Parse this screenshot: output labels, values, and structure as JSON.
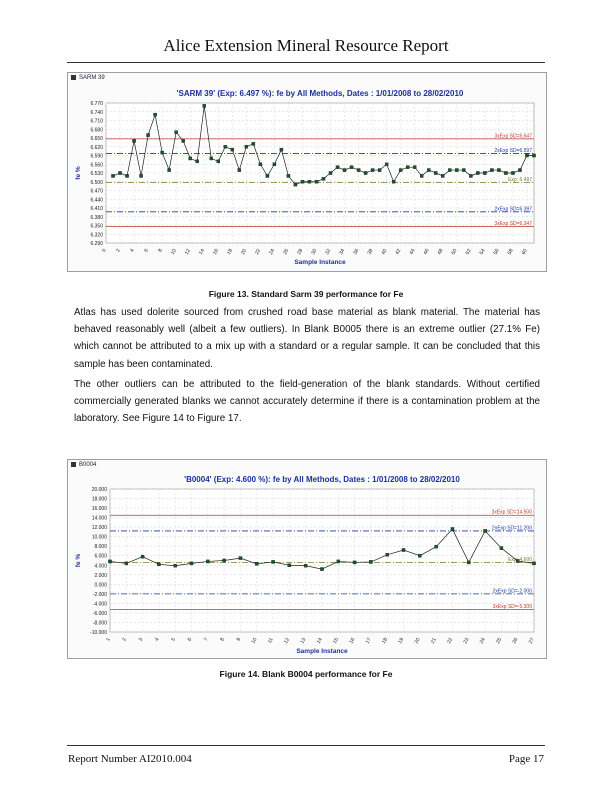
{
  "header": {
    "title": "Alice Extension Mineral Resource Report"
  },
  "figure13": {
    "caption": "Figure 13. Standard Sarm 39 performance for Fe",
    "chart_data": {
      "type": "line",
      "legend_label": "SARM 39",
      "title": "'SARM 39' (Exp: 6.497 %): fe by All Methods, Dates : 1/01/2008 to 28/02/2010",
      "xlabel": "Sample Instance",
      "ylabel": "fe %",
      "ylim": [
        6.29,
        6.77
      ],
      "yticks": [
        "6.770",
        "6.740",
        "6.710",
        "6.680",
        "6.650",
        "6.620",
        "6.590",
        "6.560",
        "6.530",
        "6.500",
        "6.470",
        "6.440",
        "6.410",
        "6.380",
        "6.350",
        "6.320",
        "6.290"
      ],
      "xticks": [
        "0",
        "2",
        "4",
        "6",
        "8",
        "10",
        "12",
        "14",
        "16",
        "18",
        "20",
        "22",
        "24",
        "26",
        "28",
        "30",
        "32",
        "34",
        "36",
        "38",
        "40",
        "42",
        "44",
        "46",
        "48",
        "50",
        "52",
        "54",
        "56",
        "58",
        "60"
      ],
      "xlim": [
        0,
        61
      ],
      "x": [
        1,
        2,
        3,
        4,
        5,
        6,
        7,
        8,
        9,
        10,
        11,
        12,
        13,
        14,
        15,
        16,
        17,
        18,
        19,
        20,
        21,
        22,
        23,
        24,
        25,
        26,
        27,
        28,
        29,
        30,
        31,
        32,
        33,
        34,
        35,
        36,
        37,
        38,
        39,
        40,
        41,
        42,
        43,
        44,
        45,
        46,
        47,
        48,
        49,
        50,
        51,
        52,
        53,
        54,
        55,
        56,
        57,
        58,
        59,
        60,
        61
      ],
      "values": [
        6.52,
        6.53,
        6.52,
        6.64,
        6.52,
        6.66,
        6.73,
        6.6,
        6.54,
        6.67,
        6.64,
        6.58,
        6.57,
        6.76,
        6.58,
        6.57,
        6.62,
        6.61,
        6.54,
        6.62,
        6.63,
        6.56,
        6.52,
        6.56,
        6.61,
        6.52,
        6.49,
        6.5,
        6.5,
        6.5,
        6.51,
        6.53,
        6.55,
        6.54,
        6.55,
        6.54,
        6.53,
        6.54,
        6.54,
        6.56,
        6.5,
        6.54,
        6.55,
        6.55,
        6.52,
        6.54,
        6.53,
        6.52,
        6.54,
        6.54,
        6.54,
        6.52,
        6.53,
        6.53,
        6.54,
        6.54,
        6.53,
        6.53,
        6.54,
        6.59,
        6.59
      ],
      "ref_lines": [
        {
          "label": "3xExp SD=6.647",
          "value": 6.647,
          "color": "#c0392b",
          "dash": "solid"
        },
        {
          "label": "2xExp SD=6.597",
          "value": 6.597,
          "color": "#1f3aa6",
          "dash": "dashdot"
        },
        {
          "label": "Exp: 6.497",
          "value": 6.497,
          "color": "#7a7a2a",
          "dash": "dashdot"
        },
        {
          "label": "2xExp SD=6.397",
          "value": 6.397,
          "color": "#1f3aa6",
          "dash": "dashdot"
        },
        {
          "label": "3xExp SD=6.347",
          "value": 6.347,
          "color": "#c0392b",
          "dash": "solid"
        }
      ]
    }
  },
  "paragraphs": {
    "p1": "Atlas has used dolerite sourced from crushed road base material as blank material.  The material has behaved reasonably well (albeit a few outliers).  In Blank B0005 there is an extreme outlier (27.1% Fe) which cannot be attributed to a mix up with a standard or a regular sample.  It can be concluded that this sample has been contaminated.",
    "p2": "The other outliers can be attributed to the field-generation of the blank standards.  Without certified commercially generated blanks we cannot accurately determine if there is a contamination problem at the laboratory.  See Figure 14 to Figure 17."
  },
  "figure14": {
    "caption": "Figure 14. Blank B0004 performance for Fe",
    "chart_data": {
      "type": "line",
      "legend_label": "B0004",
      "title": "'B0004' (Exp: 4.600 %): fe by All Methods, Dates : 1/01/2008 to 28/02/2010",
      "xlabel": "Sample Instance",
      "ylabel": "fe %",
      "ylim": [
        -10,
        20
      ],
      "yticks": [
        "20.000",
        "18.000",
        "16.000",
        "14.000",
        "12.000",
        "10.000",
        "8.000",
        "6.000",
        "4.000",
        "2.000",
        "0.000",
        "-2.000",
        "-4.000",
        "-6.000",
        "-8.000",
        "-10.000"
      ],
      "xticks": [
        "1",
        "2",
        "3",
        "4",
        "5",
        "6",
        "7",
        "8",
        "9",
        "10",
        "11",
        "12",
        "13",
        "14",
        "15",
        "16",
        "17",
        "18",
        "19",
        "20",
        "21",
        "22",
        "23",
        "24",
        "25",
        "26",
        "27"
      ],
      "xlim": [
        1,
        27
      ],
      "x": [
        1,
        2,
        3,
        4,
        5,
        6,
        7,
        8,
        9,
        10,
        11,
        12,
        13,
        14,
        15,
        16,
        17,
        18,
        19,
        20,
        21,
        22,
        23,
        24,
        25,
        26,
        27
      ],
      "values": [
        4.8,
        4.4,
        5.8,
        4.2,
        3.9,
        4.4,
        4.8,
        5.0,
        5.5,
        4.3,
        4.7,
        4.0,
        3.9,
        3.2,
        4.8,
        4.6,
        4.7,
        6.2,
        7.2,
        6.0,
        7.9,
        11.6,
        4.6,
        11.2,
        7.6,
        4.9,
        4.4
      ],
      "ref_lines": [
        {
          "label": "3xExp SD=14.500",
          "value": 14.5,
          "color": "#c0392b",
          "dash": "solid"
        },
        {
          "label": "2xExp SD=11.200",
          "value": 11.2,
          "color": "#1f3aa6",
          "dash": "dashdot"
        },
        {
          "label": "Exp: 4.600",
          "value": 4.6,
          "color": "#7a7a2a",
          "dash": "dashdot"
        },
        {
          "label": "2xExp SD=-2.000",
          "value": -2.0,
          "color": "#1f3aa6",
          "dash": "dashdot"
        },
        {
          "label": "3xExp SD=-5.300",
          "value": -5.3,
          "color": "#c0392b",
          "dash": "solid"
        }
      ]
    }
  },
  "footer": {
    "report_number": "Report Number AI2010.004",
    "page": "Page 17"
  }
}
